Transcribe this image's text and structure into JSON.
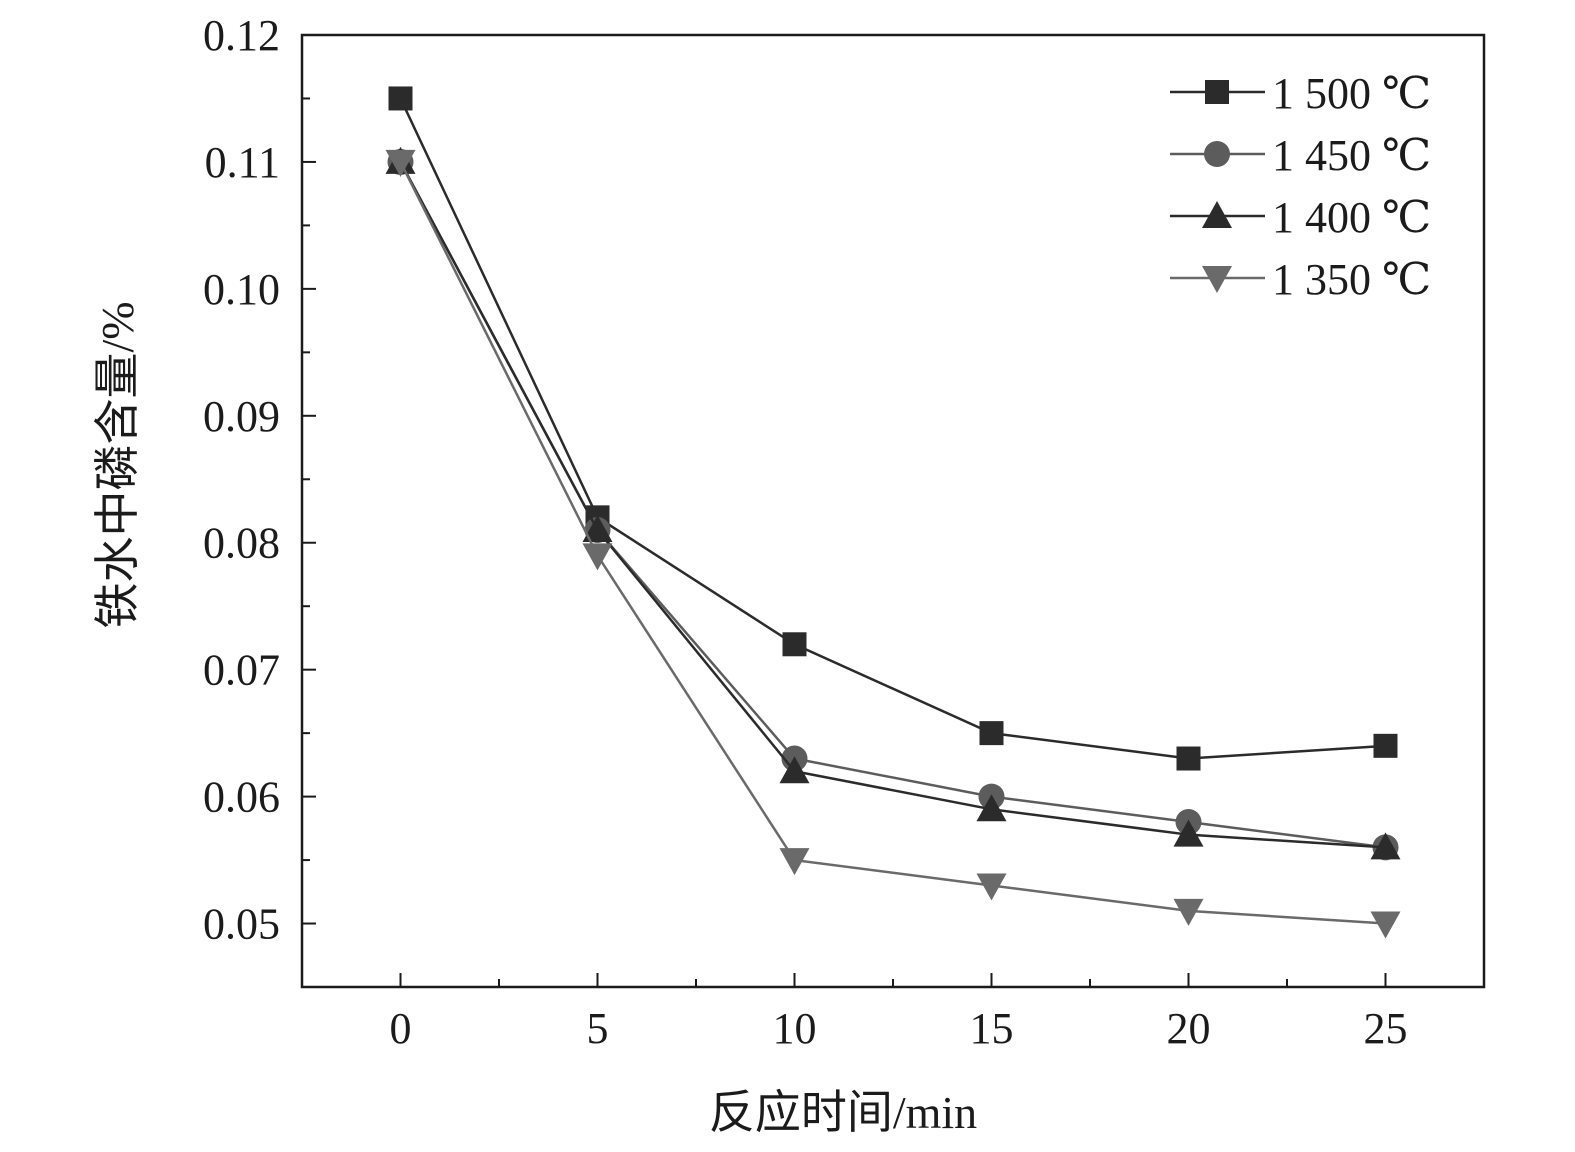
{
  "chart_data": {
    "type": "line",
    "title": "",
    "xlabel": "反应时间/min",
    "ylabel": "铁水中磷含量/%",
    "x": [
      0,
      5,
      10,
      15,
      20,
      25
    ],
    "xlim": [
      -2.5,
      27.5
    ],
    "ylim": [
      0.045,
      0.12
    ],
    "xticks": [
      "0",
      "5",
      "10",
      "15",
      "20",
      "25"
    ],
    "yticks": [
      "0.05",
      "0.06",
      "0.07",
      "0.08",
      "0.09",
      "0.10",
      "0.11",
      "0.12"
    ],
    "grid": false,
    "legend_position": "top-right",
    "series": [
      {
        "name": "1 500 ℃",
        "marker": "square",
        "color": "#2b2b2b",
        "values": [
          0.115,
          0.082,
          0.072,
          0.065,
          0.063,
          0.064
        ]
      },
      {
        "name": "1 450 ℃",
        "marker": "circle",
        "color": "#5c5c5c",
        "values": [
          0.11,
          0.081,
          0.063,
          0.06,
          0.058,
          0.056
        ]
      },
      {
        "name": "1 400 ℃",
        "marker": "triangle-up",
        "color": "#2b2b2b",
        "values": [
          0.11,
          0.081,
          0.062,
          0.059,
          0.057,
          0.056
        ]
      },
      {
        "name": "1 350 ℃",
        "marker": "triangle-down",
        "color": "#6a6a6a",
        "values": [
          0.11,
          0.079,
          0.055,
          0.053,
          0.051,
          0.05
        ]
      }
    ]
  }
}
